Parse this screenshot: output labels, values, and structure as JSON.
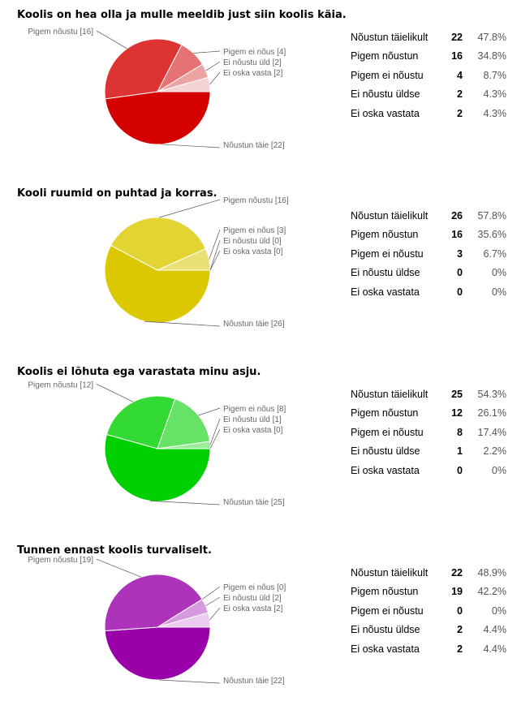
{
  "chart_data": [
    {
      "type": "pie",
      "title": "Koolis on hea olla ja mulle meeldib just siin koolis käia.",
      "categories": [
        "Nõustun täielikult",
        "Pigem nõustun",
        "Pigem ei nõustu",
        "Ei nõustu üldse",
        "Ei oska vastata"
      ],
      "counts": [
        22,
        16,
        4,
        2,
        2
      ],
      "percents": [
        "47.8%",
        "34.8%",
        "8.7%",
        "4.3%",
        "4.3%"
      ],
      "pie_labels": [
        "Nõustun täie [22]",
        "Pigem nõustu [16]",
        "Pigem ei nõus [4]",
        "Ei nõustu üld [2]",
        "Ei oska vasta [2]"
      ],
      "colors": [
        "#d50000",
        "#dd3333",
        "#e67373",
        "#eea3a3",
        "#f6d3d3"
      ]
    },
    {
      "type": "pie",
      "title": "Kooli ruumid on puhtad ja korras.",
      "categories": [
        "Nõustun täielikult",
        "Pigem nõustun",
        "Pigem ei nõustu",
        "Ei nõustu üldse",
        "Ei oska vastata"
      ],
      "counts": [
        26,
        16,
        3,
        0,
        0
      ],
      "percents": [
        "57.8%",
        "35.6%",
        "6.7%",
        "0%",
        "0%"
      ],
      "pie_labels": [
        "Nõustun täie [26]",
        "Pigem nõustu [16]",
        "Pigem ei nõus [3]",
        "Ei nõustu üld [0]",
        "Ei oska vasta [0]"
      ],
      "colors": [
        "#dcc800",
        "#e3d333",
        "#eadf73",
        "#f2eba3",
        "#f8f4d3"
      ]
    },
    {
      "type": "pie",
      "title": "Koolis ei lõhuta ega varastata minu asju.",
      "categories": [
        "Nõustun täielikult",
        "Pigem nõustun",
        "Pigem ei nõustu",
        "Ei nõustu üldse",
        "Ei oska vastata"
      ],
      "counts": [
        25,
        12,
        8,
        1,
        0
      ],
      "percents": [
        "54.3%",
        "26.1%",
        "17.4%",
        "2.2%",
        "0%"
      ],
      "pie_labels": [
        "Nõustun täie [25]",
        "Pigem nõustu [12]",
        "Pigem ei nõus [8]",
        "Ei nõustu üld [1]",
        "Ei oska vasta [0]"
      ],
      "colors": [
        "#00d000",
        "#33da33",
        "#66e366",
        "#99ed99",
        "#ccf6cc"
      ]
    },
    {
      "type": "pie",
      "title": "Tunnen ennast koolis turvaliselt.",
      "categories": [
        "Nõustun täielikult",
        "Pigem nõustun",
        "Pigem ei nõustu",
        "Ei nõustu üldse",
        "Ei oska vastata"
      ],
      "counts": [
        22,
        19,
        0,
        2,
        2
      ],
      "percents": [
        "48.9%",
        "42.2%",
        "0%",
        "4.4%",
        "4.4%"
      ],
      "pie_labels": [
        "Nõustun täie [22]",
        "Pigem nõustu [19]",
        "Pigem ei nõus [0]",
        "Ei nõustu üld [2]",
        "Ei oska vasta [2]"
      ],
      "colors": [
        "#9900aa",
        "#ad33bb",
        "#c266cc",
        "#d699dd",
        "#ebccee"
      ]
    }
  ]
}
